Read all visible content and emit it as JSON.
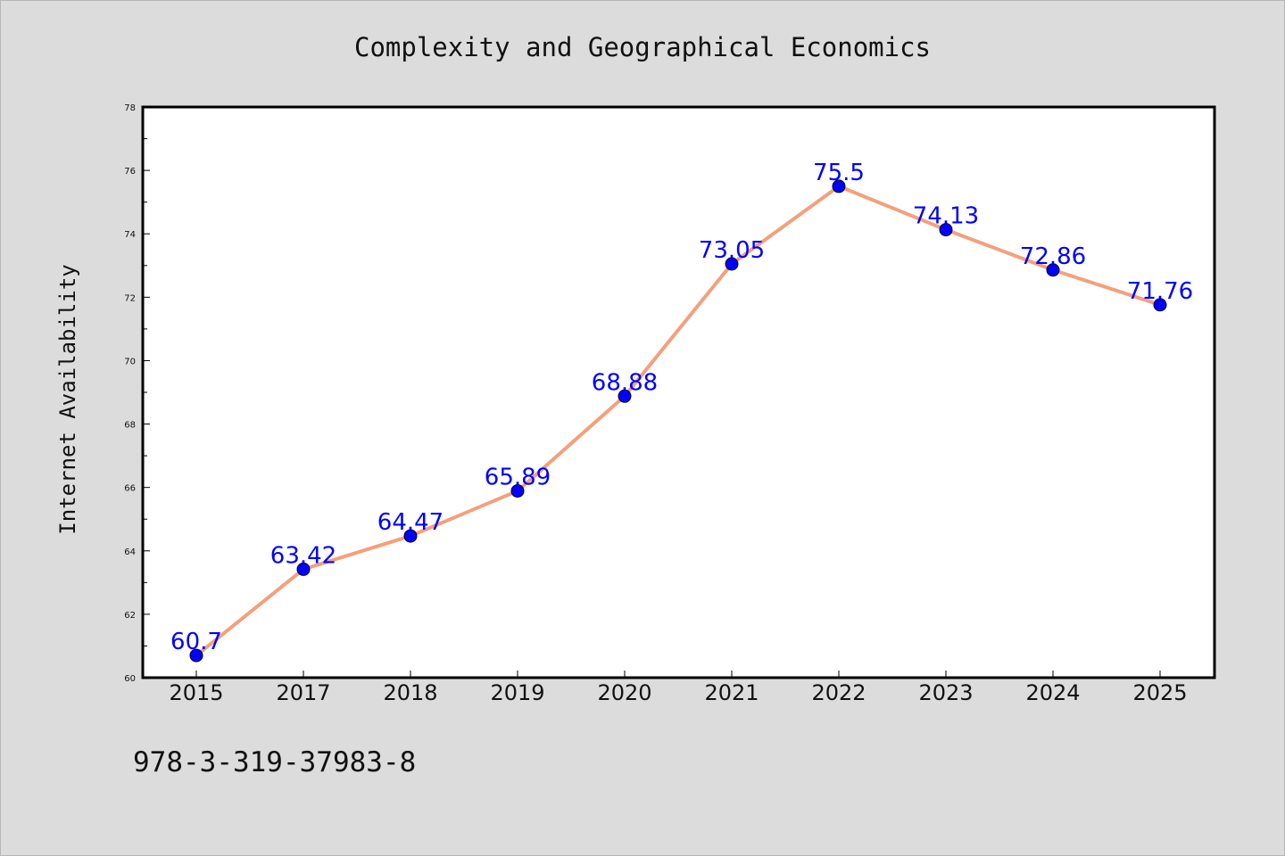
{
  "chart_data": {
    "type": "line",
    "title": "Complexity and Geographical Economics",
    "xlabel": "",
    "ylabel": "Internet Availability",
    "categories": [
      "2015",
      "2017",
      "2018",
      "2019",
      "2020",
      "2021",
      "2022",
      "2023",
      "2024",
      "2025"
    ],
    "series": [
      {
        "values": [
          60.7,
          63.42,
          64.47,
          65.89,
          68.88,
          73.05,
          75.5,
          74.13,
          72.86,
          71.76
        ],
        "data_labels": [
          "60.7",
          "63.42",
          "64.47",
          "65.89",
          "68.88",
          "73.05",
          "75.5",
          "74.13",
          "72.86",
          "71.76"
        ],
        "line_color": "#f4a07c",
        "marker_color": "#0000ff",
        "label_color": "#0000ff"
      }
    ],
    "ylim": [
      60,
      78
    ],
    "yticks": [
      "60",
      "62",
      "64",
      "66",
      "68",
      "70",
      "72",
      "74",
      "76",
      "78"
    ],
    "grid": false,
    "legend": "none",
    "plot_background": "#ffffff",
    "figure_background": "#dcdcdc"
  },
  "footnote": "978-3-319-37983-8"
}
